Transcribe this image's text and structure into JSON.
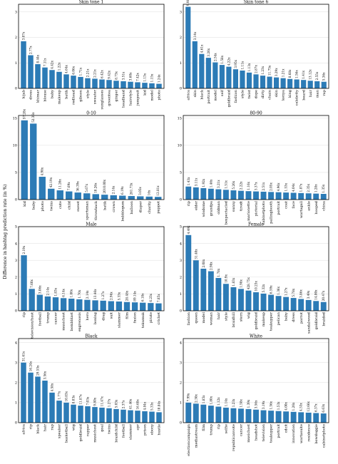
{
  "ylabel": "Difference in hashtag prediction rate (in %)",
  "chart_data": [
    {
      "type": "bar",
      "title": "Skin tone 1",
      "ylim": [
        0,
        3.3
      ],
      "yticks": [
        0,
        1,
        2,
        3
      ],
      "categories": [
        "hijab",
        "dress",
        "khimar",
        "blouse",
        "baby",
        "makeup",
        "batik",
        "redhead",
        "gibson",
        "style",
        "sweater",
        "sunglasses",
        "greentea",
        "ginger",
        "headband",
        "hairstyle",
        "jumpsuit",
        "kid",
        "model",
        "photo"
      ],
      "values": [
        1.85,
        1.3,
        0.95,
        0.82,
        0.72,
        0.65,
        0.55,
        0.5,
        0.45,
        0.4,
        0.38,
        0.35,
        0.33,
        0.3,
        0.28,
        0.26,
        0.24,
        0.22,
        0.2,
        0.18
      ],
      "labels": [
        "3.07x",
        "2.77x",
        "8.44x",
        "7.11x",
        "4.42x",
        "1.22x",
        "4.64x",
        "6.06x",
        "1.71x",
        "2.21x",
        "2.21x",
        "6.42x",
        "9.42x",
        "8.73x",
        "3.51x",
        "3.60x",
        "7.42x",
        "1.13x",
        "1.15x",
        "1.24x"
      ]
    },
    {
      "type": "bar",
      "title": "Skin tone 6",
      "ylim": [
        0,
        3.3
      ],
      "yticks": [
        0,
        1,
        2,
        3
      ],
      "categories": [
        "africa",
        "skin",
        "black",
        "portrait",
        "model",
        "self",
        "goldbraid",
        "fashion",
        "style",
        "twist",
        "dope",
        "dirty",
        "chain",
        "skin",
        "kenya",
        "king",
        "celebrity",
        "beard",
        "hair",
        "man",
        "rap"
      ],
      "values": [
        3.2,
        1.85,
        1.35,
        1.2,
        1.02,
        0.92,
        0.85,
        0.75,
        0.7,
        0.62,
        0.55,
        0.5,
        0.46,
        0.43,
        0.4,
        0.37,
        0.35,
        0.33,
        0.3,
        0.28,
        0.26
      ],
      "labels": [
        "9.98x",
        "3.14x",
        "4.61x",
        "3.26x",
        "2.54x",
        "1.58x",
        "4.22x",
        "3.95x",
        "1.11x",
        "1.13x",
        "2.87x",
        "1.23x",
        "11.75x",
        "3.29x",
        "1.21x",
        "8.68x",
        "1.56x",
        "1.41x",
        "13.12x",
        "2.55x",
        "5.36x"
      ]
    },
    {
      "type": "bar",
      "title": "0-10",
      "ylim": [
        0,
        15.5
      ],
      "yticks": [
        0,
        5,
        10,
        15
      ],
      "categories": [
        "kid",
        "baby",
        "photo",
        "twins",
        "cute",
        "child",
        "sweet",
        "sportsman",
        "throwback",
        "batik",
        "crown",
        "bubblegum",
        "balloon",
        "diaper",
        "charity",
        "puppet"
      ],
      "values": [
        14.6,
        14.0,
        4.2,
        2.0,
        1.7,
        1.5,
        1.3,
        1.15,
        1.0,
        0.9,
        0.8,
        0.72,
        0.65,
        0.6,
        0.55,
        0.5
      ],
      "labels": [
        "57.28x",
        "52.36x",
        "4.98x",
        "42.19x",
        "11.26x",
        "7.69x",
        "36.39x",
        "5.67x",
        "10.26x",
        "2010.00x",
        "2.14x",
        "6.19x",
        "261.73x",
        "3.05x",
        "16x",
        "12.81x"
      ]
    },
    {
      "type": "bar",
      "title": "80-90",
      "ylim": [
        0,
        15.5
      ],
      "yticks": [
        0,
        5,
        10,
        15
      ],
      "categories": [
        "rip",
        "elder",
        "wisdome",
        "grandpa",
        "oldman",
        "bespectacled",
        "sunny",
        "tiredt",
        "marionette",
        "pictorial",
        "cabinetphoto",
        "pallingbooth",
        "portrait",
        "coat",
        "face",
        "wartagall",
        "ankle",
        "hooped",
        "china"
      ],
      "values": [
        2.4,
        2.25,
        2.1,
        2.0,
        1.9,
        1.8,
        1.7,
        1.62,
        1.55,
        1.5,
        1.45,
        1.4,
        1.35,
        1.3,
        1.25,
        1.2,
        1.15,
        1.1,
        1.05
      ],
      "labels": [
        "1.43x",
        "3.11x",
        "1.92x",
        "1.46x",
        "3.21x",
        "1.51x",
        "5.26x",
        "2.22x",
        "1.16x",
        "3.37x",
        "2.51x",
        "2.05x",
        "4.96x",
        "1.53x",
        "4.04x",
        "1.87x",
        "2.35x",
        "1.28x",
        "1.35x"
      ]
    },
    {
      "type": "bar",
      "title": "Male",
      "ylim": [
        0,
        5.0
      ],
      "yticks": [
        0,
        1,
        2,
        3,
        4,
        5
      ],
      "categories": [
        "rip",
        "television/host",
        "football",
        "trump",
        "cancer",
        "musichost",
        "bombblast",
        "exgrenosis",
        "hero",
        "boxing",
        "drag",
        "suit",
        "slammer",
        "film",
        "fusion",
        "tekumuk",
        "pirate",
        "cricket"
      ],
      "values": [
        3.3,
        1.3,
        0.95,
        0.85,
        0.8,
        0.75,
        0.72,
        0.68,
        0.65,
        0.62,
        0.6,
        0.57,
        0.55,
        0.52,
        0.5,
        0.48,
        0.46,
        0.44
      ],
      "labels": [
        "2.19x",
        "7.60x",
        "3.06x",
        "2.14x",
        "1.83x",
        "6.14x",
        "1.80x",
        "1.70x",
        "2.14x",
        "13.46x",
        "1.27x",
        "2.96x",
        "5.33x",
        "28.48x",
        "89.14x",
        "6.18x",
        "6.23x",
        "7.85x"
      ]
    },
    {
      "type": "bar",
      "title": "Female",
      "ylim": [
        0,
        5.0
      ],
      "yticks": [
        0,
        1,
        2,
        3,
        4,
        5
      ],
      "categories": [
        "fashion",
        "queen",
        "model",
        "woman",
        "hair",
        "style",
        "braidhill",
        "stern",
        "wig",
        "goldbraid",
        "makeup",
        "teakupper",
        "pelican",
        "baby",
        "dress",
        "parrot",
        "sandalweed",
        "goldbraid",
        "braided"
      ],
      "values": [
        4.5,
        3.0,
        2.5,
        2.35,
        1.95,
        1.6,
        1.4,
        1.3,
        1.2,
        1.1,
        1.02,
        0.95,
        0.88,
        0.82,
        0.76,
        0.7,
        0.64,
        0.58,
        0.52
      ],
      "labels": [
        "4.49x",
        "31.40x",
        "2.08x",
        "2.98x",
        "1.78x",
        "10.9x",
        "1.83x",
        "1.98x",
        "428.75x",
        "10.23x",
        "5.32x",
        "6.59x",
        "1.36x",
        "1.27x",
        "5.78x",
        "3.86x",
        "3.49x",
        "14.00x",
        "20.47x"
      ]
    },
    {
      "type": "bar",
      "title": "Black",
      "ylim": [
        0,
        4.2
      ],
      "yticks": [
        0,
        1,
        2,
        3,
        4
      ],
      "categories": [
        "africa",
        "rip",
        "black",
        "hair",
        "rap",
        "speaker",
        "basketball",
        "wig",
        "goldbraid",
        "rapper",
        "musichost",
        "goal",
        "twins",
        "braidchild",
        "football",
        "slammer",
        "apr",
        "prison",
        "ebony",
        "hustle"
      ],
      "values": [
        3.0,
        2.5,
        2.3,
        2.1,
        1.5,
        1.1,
        1.0,
        0.9,
        0.85,
        0.82,
        0.78,
        0.75,
        0.72,
        0.68,
        0.65,
        0.62,
        0.6,
        0.57,
        0.55,
        0.52
      ],
      "labels": [
        "31.61x",
        "16.24x",
        "29.55x",
        "3.56x",
        "4.58x",
        "1.77x",
        "10.83x",
        "8.03x",
        "11.87x",
        "7.03x",
        "9.80x",
        "11.47x",
        "1.27x",
        "5.03x",
        "2.37x",
        "41.46x",
        "16.68x",
        "4.84x",
        "5.33x",
        "10.84x"
      ]
    },
    {
      "type": "bar",
      "title": "White",
      "ylim": [
        0,
        4.2
      ],
      "yticks": [
        0,
        1,
        2,
        3,
        4
      ],
      "categories": [
        "electioncampaign",
        "mediastream",
        "film",
        "trump",
        "rip",
        "selfie",
        "republicanvote",
        "cancer",
        "musichost",
        "headshot",
        "television",
        "teakupper",
        "portrait",
        "cdcit",
        "innovation",
        "wartasuite",
        "residence",
        "bowdoggie",
        "cabinetphoto"
      ],
      "values": [
        1.0,
        0.95,
        0.9,
        0.85,
        0.8,
        0.75,
        0.72,
        0.7,
        0.68,
        0.65,
        0.62,
        0.6,
        0.58,
        0.56,
        0.54,
        0.52,
        0.5,
        0.48,
        0.46
      ],
      "labels": [
        "7.99x",
        "2.30x",
        "1.85x",
        "1.80x",
        "1.12x",
        "1.14x",
        "1.23x",
        "1.58x",
        "1.39x",
        "3.56x",
        "3.19x",
        "1.56x",
        "1.53x",
        "4.00x",
        "1.26x",
        "4.53x",
        "12.66x",
        "6.37x",
        "6.63x"
      ]
    }
  ]
}
